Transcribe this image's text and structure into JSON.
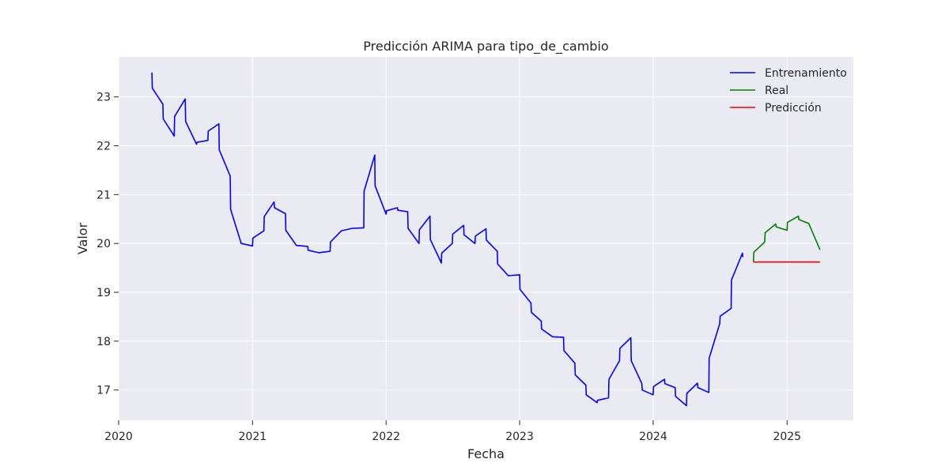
{
  "chart_data": {
    "type": "line",
    "title": "Predicción ARIMA para tipo_de_cambio",
    "xlabel": "Fecha",
    "ylabel": "Valor",
    "xlim": [
      "2020-01-01",
      "2025-07-01"
    ],
    "ylim": [
      16.38,
      23.82
    ],
    "x_ticks": [
      {
        "date": "2020-01-01",
        "label": "2020"
      },
      {
        "date": "2021-01-01",
        "label": "2021"
      },
      {
        "date": "2022-01-01",
        "label": "2022"
      },
      {
        "date": "2023-01-01",
        "label": "2023"
      },
      {
        "date": "2024-01-01",
        "label": "2024"
      },
      {
        "date": "2025-01-01",
        "label": "2025"
      }
    ],
    "y_ticks": [
      17,
      18,
      19,
      20,
      21,
      22,
      23
    ],
    "grid": true,
    "legend_position": "top-right",
    "series": [
      {
        "name": "Entrenamiento",
        "color": "#0000ff",
        "points": [
          [
            "2020-04-01",
            23.5
          ],
          [
            "2020-04-02",
            23.18
          ],
          [
            "2020-05-01",
            22.85
          ],
          [
            "2020-05-02",
            22.55
          ],
          [
            "2020-06-01",
            22.2
          ],
          [
            "2020-06-02",
            22.6
          ],
          [
            "2020-07-01",
            22.96
          ],
          [
            "2020-07-02",
            22.5
          ],
          [
            "2020-08-01",
            22.03
          ],
          [
            "2020-08-02",
            22.07
          ],
          [
            "2020-09-01",
            22.11
          ],
          [
            "2020-09-02",
            22.3
          ],
          [
            "2020-10-01",
            22.45
          ],
          [
            "2020-10-02",
            21.92
          ],
          [
            "2020-11-01",
            21.38
          ],
          [
            "2020-11-02",
            20.7
          ],
          [
            "2020-12-01",
            20.0
          ],
          [
            "2021-01-01",
            19.95
          ],
          [
            "2021-01-02",
            20.11
          ],
          [
            "2021-02-01",
            20.26
          ],
          [
            "2021-02-02",
            20.55
          ],
          [
            "2021-03-01",
            20.85
          ],
          [
            "2021-03-02",
            20.73
          ],
          [
            "2021-04-01",
            20.61
          ],
          [
            "2021-04-02",
            20.27
          ],
          [
            "2021-05-01",
            19.96
          ],
          [
            "2021-06-01",
            19.94
          ],
          [
            "2021-06-02",
            19.86
          ],
          [
            "2021-07-01",
            19.81
          ],
          [
            "2021-08-01",
            19.84
          ],
          [
            "2021-08-02",
            20.03
          ],
          [
            "2021-09-01",
            20.26
          ],
          [
            "2021-10-01",
            20.31
          ],
          [
            "2021-11-01",
            20.32
          ],
          [
            "2021-11-02",
            21.07
          ],
          [
            "2021-12-01",
            21.81
          ],
          [
            "2021-12-02",
            21.18
          ],
          [
            "2022-01-01",
            20.6
          ],
          [
            "2022-01-02",
            20.67
          ],
          [
            "2022-02-01",
            20.73
          ],
          [
            "2022-02-02",
            20.68
          ],
          [
            "2022-03-01",
            20.65
          ],
          [
            "2022-03-02",
            20.31
          ],
          [
            "2022-04-01",
            20.0
          ],
          [
            "2022-04-02",
            20.28
          ],
          [
            "2022-05-01",
            20.56
          ],
          [
            "2022-05-02",
            20.08
          ],
          [
            "2022-06-01",
            19.6
          ],
          [
            "2022-06-02",
            19.8
          ],
          [
            "2022-07-01",
            20.0
          ],
          [
            "2022-07-02",
            20.19
          ],
          [
            "2022-08-01",
            20.37
          ],
          [
            "2022-08-02",
            20.18
          ],
          [
            "2022-09-01",
            20.0
          ],
          [
            "2022-09-02",
            20.15
          ],
          [
            "2022-10-01",
            20.3
          ],
          [
            "2022-10-02",
            20.07
          ],
          [
            "2022-11-01",
            19.84
          ],
          [
            "2022-11-02",
            19.58
          ],
          [
            "2022-12-01",
            19.34
          ],
          [
            "2023-01-01",
            19.36
          ],
          [
            "2023-01-02",
            19.06
          ],
          [
            "2023-02-01",
            18.78
          ],
          [
            "2023-02-02",
            18.59
          ],
          [
            "2023-03-01",
            18.41
          ],
          [
            "2023-03-02",
            18.25
          ],
          [
            "2023-04-01",
            18.09
          ],
          [
            "2023-05-01",
            18.08
          ],
          [
            "2023-05-02",
            17.81
          ],
          [
            "2023-06-01",
            17.55
          ],
          [
            "2023-06-02",
            17.31
          ],
          [
            "2023-07-01",
            17.1
          ],
          [
            "2023-07-02",
            16.9
          ],
          [
            "2023-08-01",
            16.74
          ],
          [
            "2023-08-02",
            16.79
          ],
          [
            "2023-09-01",
            16.84
          ],
          [
            "2023-09-02",
            17.22
          ],
          [
            "2023-10-01",
            17.6
          ],
          [
            "2023-10-02",
            17.85
          ],
          [
            "2023-11-01",
            18.07
          ],
          [
            "2023-11-02",
            17.6
          ],
          [
            "2023-12-01",
            17.13
          ],
          [
            "2023-12-02",
            17.0
          ],
          [
            "2024-01-01",
            16.9
          ],
          [
            "2024-01-02",
            17.07
          ],
          [
            "2024-02-01",
            17.22
          ],
          [
            "2024-02-02",
            17.13
          ],
          [
            "2024-03-01",
            17.05
          ],
          [
            "2024-03-02",
            16.87
          ],
          [
            "2024-04-01",
            16.68
          ],
          [
            "2024-04-02",
            16.93
          ],
          [
            "2024-05-01",
            17.14
          ],
          [
            "2024-05-02",
            17.05
          ],
          [
            "2024-06-01",
            16.95
          ],
          [
            "2024-06-02",
            17.65
          ],
          [
            "2024-07-01",
            18.36
          ],
          [
            "2024-07-02",
            18.51
          ],
          [
            "2024-08-01",
            18.67
          ],
          [
            "2024-08-02",
            19.25
          ],
          [
            "2024-09-01",
            19.8
          ],
          [
            "2024-09-02",
            19.72
          ]
        ]
      },
      {
        "name": "Real",
        "color": "#008000",
        "points": [
          [
            "2024-10-01",
            19.62
          ],
          [
            "2024-10-02",
            19.82
          ],
          [
            "2024-11-01",
            20.03
          ],
          [
            "2024-11-02",
            20.22
          ],
          [
            "2024-12-01",
            20.4
          ],
          [
            "2024-12-02",
            20.34
          ],
          [
            "2025-01-01",
            20.27
          ],
          [
            "2025-01-02",
            20.43
          ],
          [
            "2025-02-01",
            20.56
          ],
          [
            "2025-02-02",
            20.49
          ],
          [
            "2025-03-01",
            20.41
          ],
          [
            "2025-04-01",
            19.87
          ]
        ]
      },
      {
        "name": "Predicción",
        "color": "#ff0000",
        "points": [
          [
            "2024-10-01",
            19.62
          ],
          [
            "2025-04-01",
            19.62
          ]
        ]
      }
    ]
  }
}
